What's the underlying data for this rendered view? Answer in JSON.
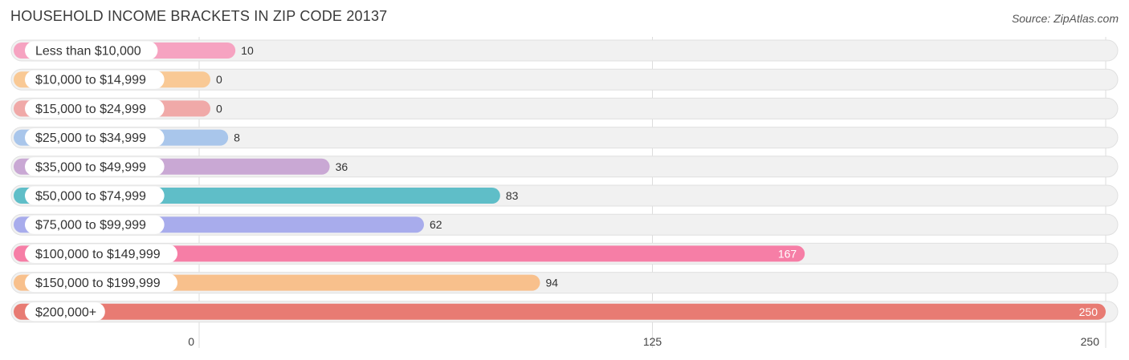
{
  "title": "HOUSEHOLD INCOME BRACKETS IN ZIP CODE 20137",
  "source": "Source: ZipAtlas.com",
  "chart_data": {
    "type": "bar",
    "orientation": "horizontal",
    "title": "HOUSEHOLD INCOME BRACKETS IN ZIP CODE 20137",
    "xlabel": "",
    "ylabel": "",
    "xlim": [
      0,
      250
    ],
    "ticks": [
      0,
      125,
      250
    ],
    "grid": true,
    "categories": [
      "Less than $10,000",
      "$10,000 to $14,999",
      "$15,000 to $24,999",
      "$25,000 to $34,999",
      "$35,000 to $49,999",
      "$50,000 to $74,999",
      "$75,000 to $99,999",
      "$100,000 to $149,999",
      "$150,000 to $199,999",
      "$200,000+"
    ],
    "values": [
      10,
      0,
      0,
      8,
      36,
      83,
      62,
      167,
      94,
      250
    ],
    "colors": [
      "#f6a3c1",
      "#f9c995",
      "#f0a9a8",
      "#a9c6eb",
      "#c9a8d4",
      "#5fbec8",
      "#a8acec",
      "#f67ea6",
      "#f8c08c",
      "#e87b73"
    ]
  }
}
